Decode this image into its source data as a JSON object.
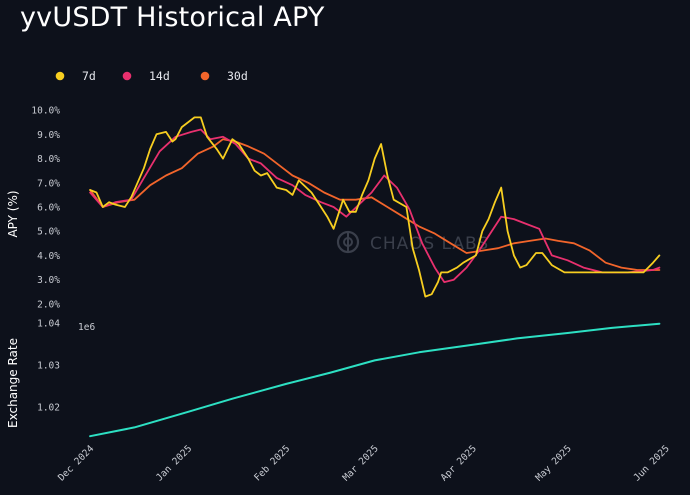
{
  "title": "yvUSDT Historical APY",
  "watermark": "CHAOS LABS",
  "colors": {
    "background": "#0d111b",
    "7d": "#f7ce20",
    "14d": "#e8306e",
    "30d": "#f2652b",
    "exchange": "#2de0c3",
    "watermark": "#3a3f4b"
  },
  "chart_data": [
    {
      "type": "line",
      "ylabel": "APY (%)",
      "legend": [
        "7d",
        "14d",
        "30d"
      ],
      "legend_position": "top-left",
      "ylim": [
        1.5,
        10.5
      ],
      "yticks": [
        2,
        3,
        4,
        5,
        6,
        7,
        8,
        9,
        10
      ],
      "ytick_labels": [
        "2.0%",
        "3.0%",
        "4.0%",
        "5.0%",
        "6.0%",
        "7.0%",
        "8.0%",
        "9.0%",
        "10.0%"
      ],
      "series": [
        {
          "name": "7d",
          "x": [
            "2024-12-01",
            "2024-12-03",
            "2024-12-05",
            "2024-12-07",
            "2024-12-09",
            "2024-12-12",
            "2024-12-14",
            "2024-12-18",
            "2024-12-20",
            "2024-12-22",
            "2024-12-25",
            "2024-12-27",
            "2024-12-28",
            "2024-12-30",
            "2025-01-03",
            "2025-01-05",
            "2025-01-07",
            "2025-01-10",
            "2025-01-12",
            "2025-01-15",
            "2025-01-17",
            "2025-01-20",
            "2025-01-22",
            "2025-01-24",
            "2025-01-26",
            "2025-01-29",
            "2025-02-01",
            "2025-02-03",
            "2025-02-05",
            "2025-02-09",
            "2025-02-12",
            "2025-02-14",
            "2025-02-16",
            "2025-02-19",
            "2025-02-21",
            "2025-02-23",
            "2025-02-25",
            "2025-02-27",
            "2025-03-01",
            "2025-03-03",
            "2025-03-05",
            "2025-03-07",
            "2025-03-11",
            "2025-03-13",
            "2025-03-15",
            "2025-03-17",
            "2025-03-19",
            "2025-03-21",
            "2025-03-22",
            "2025-03-24",
            "2025-03-27",
            "2025-03-29",
            "2025-04-02",
            "2025-04-04",
            "2025-04-06",
            "2025-04-08",
            "2025-04-10",
            "2025-04-12",
            "2025-04-14",
            "2025-04-16",
            "2025-04-18",
            "2025-04-21",
            "2025-04-23",
            "2025-04-26",
            "2025-04-30",
            "2025-05-05",
            "2025-05-10",
            "2025-05-15",
            "2025-05-20",
            "2025-05-25",
            "2025-05-28",
            "2025-05-30"
          ],
          "values": [
            6.7,
            6.6,
            6.0,
            6.2,
            6.1,
            6.0,
            6.4,
            7.6,
            8.4,
            9.0,
            9.1,
            8.7,
            8.8,
            9.3,
            9.7,
            9.7,
            8.9,
            8.4,
            8.0,
            8.8,
            8.6,
            8.0,
            7.5,
            7.3,
            7.4,
            6.8,
            6.7,
            6.5,
            7.1,
            6.6,
            6.0,
            5.6,
            5.1,
            6.3,
            5.8,
            5.8,
            6.5,
            7.1,
            8.0,
            8.6,
            7.3,
            6.3,
            6.0,
            4.3,
            3.4,
            2.3,
            2.4,
            2.9,
            3.3,
            3.3,
            3.5,
            3.7,
            4.0,
            5.0,
            5.5,
            6.2,
            6.8,
            5.0,
            4.0,
            3.5,
            3.6,
            4.1,
            4.1,
            3.6,
            3.3,
            3.3,
            3.3,
            3.3,
            3.3,
            3.3,
            3.7,
            4.0
          ]
        },
        {
          "name": "14d",
          "x": [
            "2024-12-01",
            "2024-12-05",
            "2024-12-09",
            "2024-12-14",
            "2024-12-18",
            "2024-12-23",
            "2024-12-28",
            "2025-01-02",
            "2025-01-05",
            "2025-01-08",
            "2025-01-12",
            "2025-01-16",
            "2025-01-20",
            "2025-01-24",
            "2025-01-29",
            "2025-02-03",
            "2025-02-07",
            "2025-02-12",
            "2025-02-16",
            "2025-02-20",
            "2025-02-24",
            "2025-02-28",
            "2025-03-04",
            "2025-03-08",
            "2025-03-12",
            "2025-03-16",
            "2025-03-20",
            "2025-03-23",
            "2025-03-26",
            "2025-03-30",
            "2025-04-03",
            "2025-04-07",
            "2025-04-10",
            "2025-04-14",
            "2025-04-18",
            "2025-04-22",
            "2025-04-26",
            "2025-05-01",
            "2025-05-06",
            "2025-05-12",
            "2025-05-20",
            "2025-05-28",
            "2025-05-30"
          ],
          "values": [
            6.6,
            6.0,
            6.2,
            6.3,
            7.2,
            8.3,
            8.9,
            9.1,
            9.2,
            8.8,
            8.9,
            8.6,
            8.0,
            7.8,
            7.2,
            6.9,
            6.5,
            6.2,
            6.0,
            5.6,
            6.1,
            6.6,
            7.3,
            6.8,
            5.9,
            4.5,
            3.5,
            2.9,
            3.0,
            3.5,
            4.2,
            5.0,
            5.6,
            5.5,
            5.3,
            5.1,
            4.0,
            3.8,
            3.5,
            3.3,
            3.3,
            3.4,
            3.5
          ]
        },
        {
          "name": "30d",
          "x": [
            "2024-12-01",
            "2024-12-05",
            "2024-12-10",
            "2024-12-15",
            "2024-12-20",
            "2024-12-25",
            "2024-12-30",
            "2025-01-04",
            "2025-01-09",
            "2025-01-12",
            "2025-01-16",
            "2025-01-20",
            "2025-01-25",
            "2025-01-30",
            "2025-02-03",
            "2025-02-08",
            "2025-02-13",
            "2025-02-18",
            "2025-02-23",
            "2025-02-28",
            "2025-03-05",
            "2025-03-10",
            "2025-03-15",
            "2025-03-20",
            "2025-03-25",
            "2025-03-30",
            "2025-04-04",
            "2025-04-09",
            "2025-04-14",
            "2025-04-19",
            "2025-04-24",
            "2025-04-28",
            "2025-05-03",
            "2025-05-08",
            "2025-05-13",
            "2025-05-18",
            "2025-05-23",
            "2025-05-30"
          ],
          "values": [
            6.7,
            6.0,
            6.2,
            6.3,
            6.9,
            7.3,
            7.6,
            8.2,
            8.5,
            8.8,
            8.7,
            8.5,
            8.2,
            7.7,
            7.3,
            7.0,
            6.6,
            6.3,
            6.3,
            6.4,
            6.0,
            5.6,
            5.2,
            4.9,
            4.5,
            4.1,
            4.2,
            4.3,
            4.5,
            4.6,
            4.7,
            4.6,
            4.5,
            4.2,
            3.7,
            3.5,
            3.4,
            3.4
          ]
        }
      ]
    },
    {
      "type": "line",
      "ylabel": "Exchange Rate",
      "offset_label": "1e6",
      "ylim": [
        1.0122,
        1.0402
      ],
      "yticks": [
        1.02,
        1.03,
        1.04
      ],
      "ytick_labels": [
        "1.02",
        "1.03",
        "1.04"
      ],
      "xtick_labels": [
        "Dec 2024",
        "Jan 2025",
        "Feb 2025",
        "Mar 2025",
        "Apr 2025",
        "May 2025",
        "Jun 2025"
      ],
      "xlim": [
        "2024-11-24",
        "2025-06-03"
      ],
      "series": [
        {
          "name": "Exchange Rate",
          "x": [
            "2024-12-01",
            "2024-12-15",
            "2025-01-01",
            "2025-01-15",
            "2025-02-01",
            "2025-02-15",
            "2025-03-01",
            "2025-03-15",
            "2025-04-01",
            "2025-04-15",
            "2025-05-01",
            "2025-05-15",
            "2025-05-30"
          ],
          "values": [
            1.0131,
            1.0152,
            1.0189,
            1.022,
            1.0255,
            1.0282,
            1.0311,
            1.033,
            1.0348,
            1.0363,
            1.0376,
            1.0388,
            1.0398
          ]
        }
      ]
    }
  ]
}
